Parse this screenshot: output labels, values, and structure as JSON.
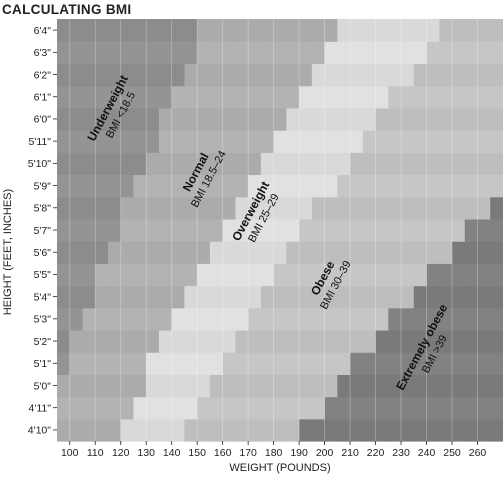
{
  "chart_data": {
    "type": "heatmap",
    "title": "CALCULATING BMI",
    "xlabel": "WEIGHT (POUNDS)",
    "ylabel": "HEIGHT (FEET, INCHES)",
    "x_ticks": [
      "100",
      "110",
      "120",
      "130",
      "140",
      "150",
      "160",
      "170",
      "180",
      "190",
      "200",
      "210",
      "220",
      "230",
      "240",
      "250",
      "260"
    ],
    "y_ticks": [
      "4'10\"",
      "4'11\"",
      "5'0\"",
      "5'1\"",
      "5'2\"",
      "5'3\"",
      "5'4\"",
      "5'5\"",
      "5'6\"",
      "5'7\"",
      "5'8\"",
      "5'9\"",
      "5'10\"",
      "5'11\"",
      "6'0\"",
      "6'1\"",
      "6'2\"",
      "6'3\"",
      "6'4\""
    ],
    "xlim": [
      95,
      270
    ],
    "heights_in": [
      58,
      59,
      60,
      61,
      62,
      63,
      64,
      65,
      66,
      67,
      68,
      69,
      70,
      71,
      72,
      73,
      74,
      75,
      76
    ],
    "grid": true,
    "zones": [
      {
        "name": "Underweight",
        "range": "BMI <18.5",
        "bmi_min": 0,
        "bmi_max": 18.5,
        "color": "#8c8c8c"
      },
      {
        "name": "Normal",
        "range": "BMI 18.5–24",
        "bmi_min": 18.5,
        "bmi_max": 25,
        "color": "#ababab"
      },
      {
        "name": "Overweight",
        "range": "BMI 25–29",
        "bmi_min": 25,
        "bmi_max": 30,
        "color": "#d9d9d9"
      },
      {
        "name": "Obese",
        "range": "BMI 30–39",
        "bmi_min": 30,
        "bmi_max": 40,
        "color": "#bebebe"
      },
      {
        "name": "Extremely obese",
        "range": "BMI >39",
        "bmi_min": 40,
        "bmi_max": 999,
        "color": "#7a7a7a"
      }
    ]
  }
}
